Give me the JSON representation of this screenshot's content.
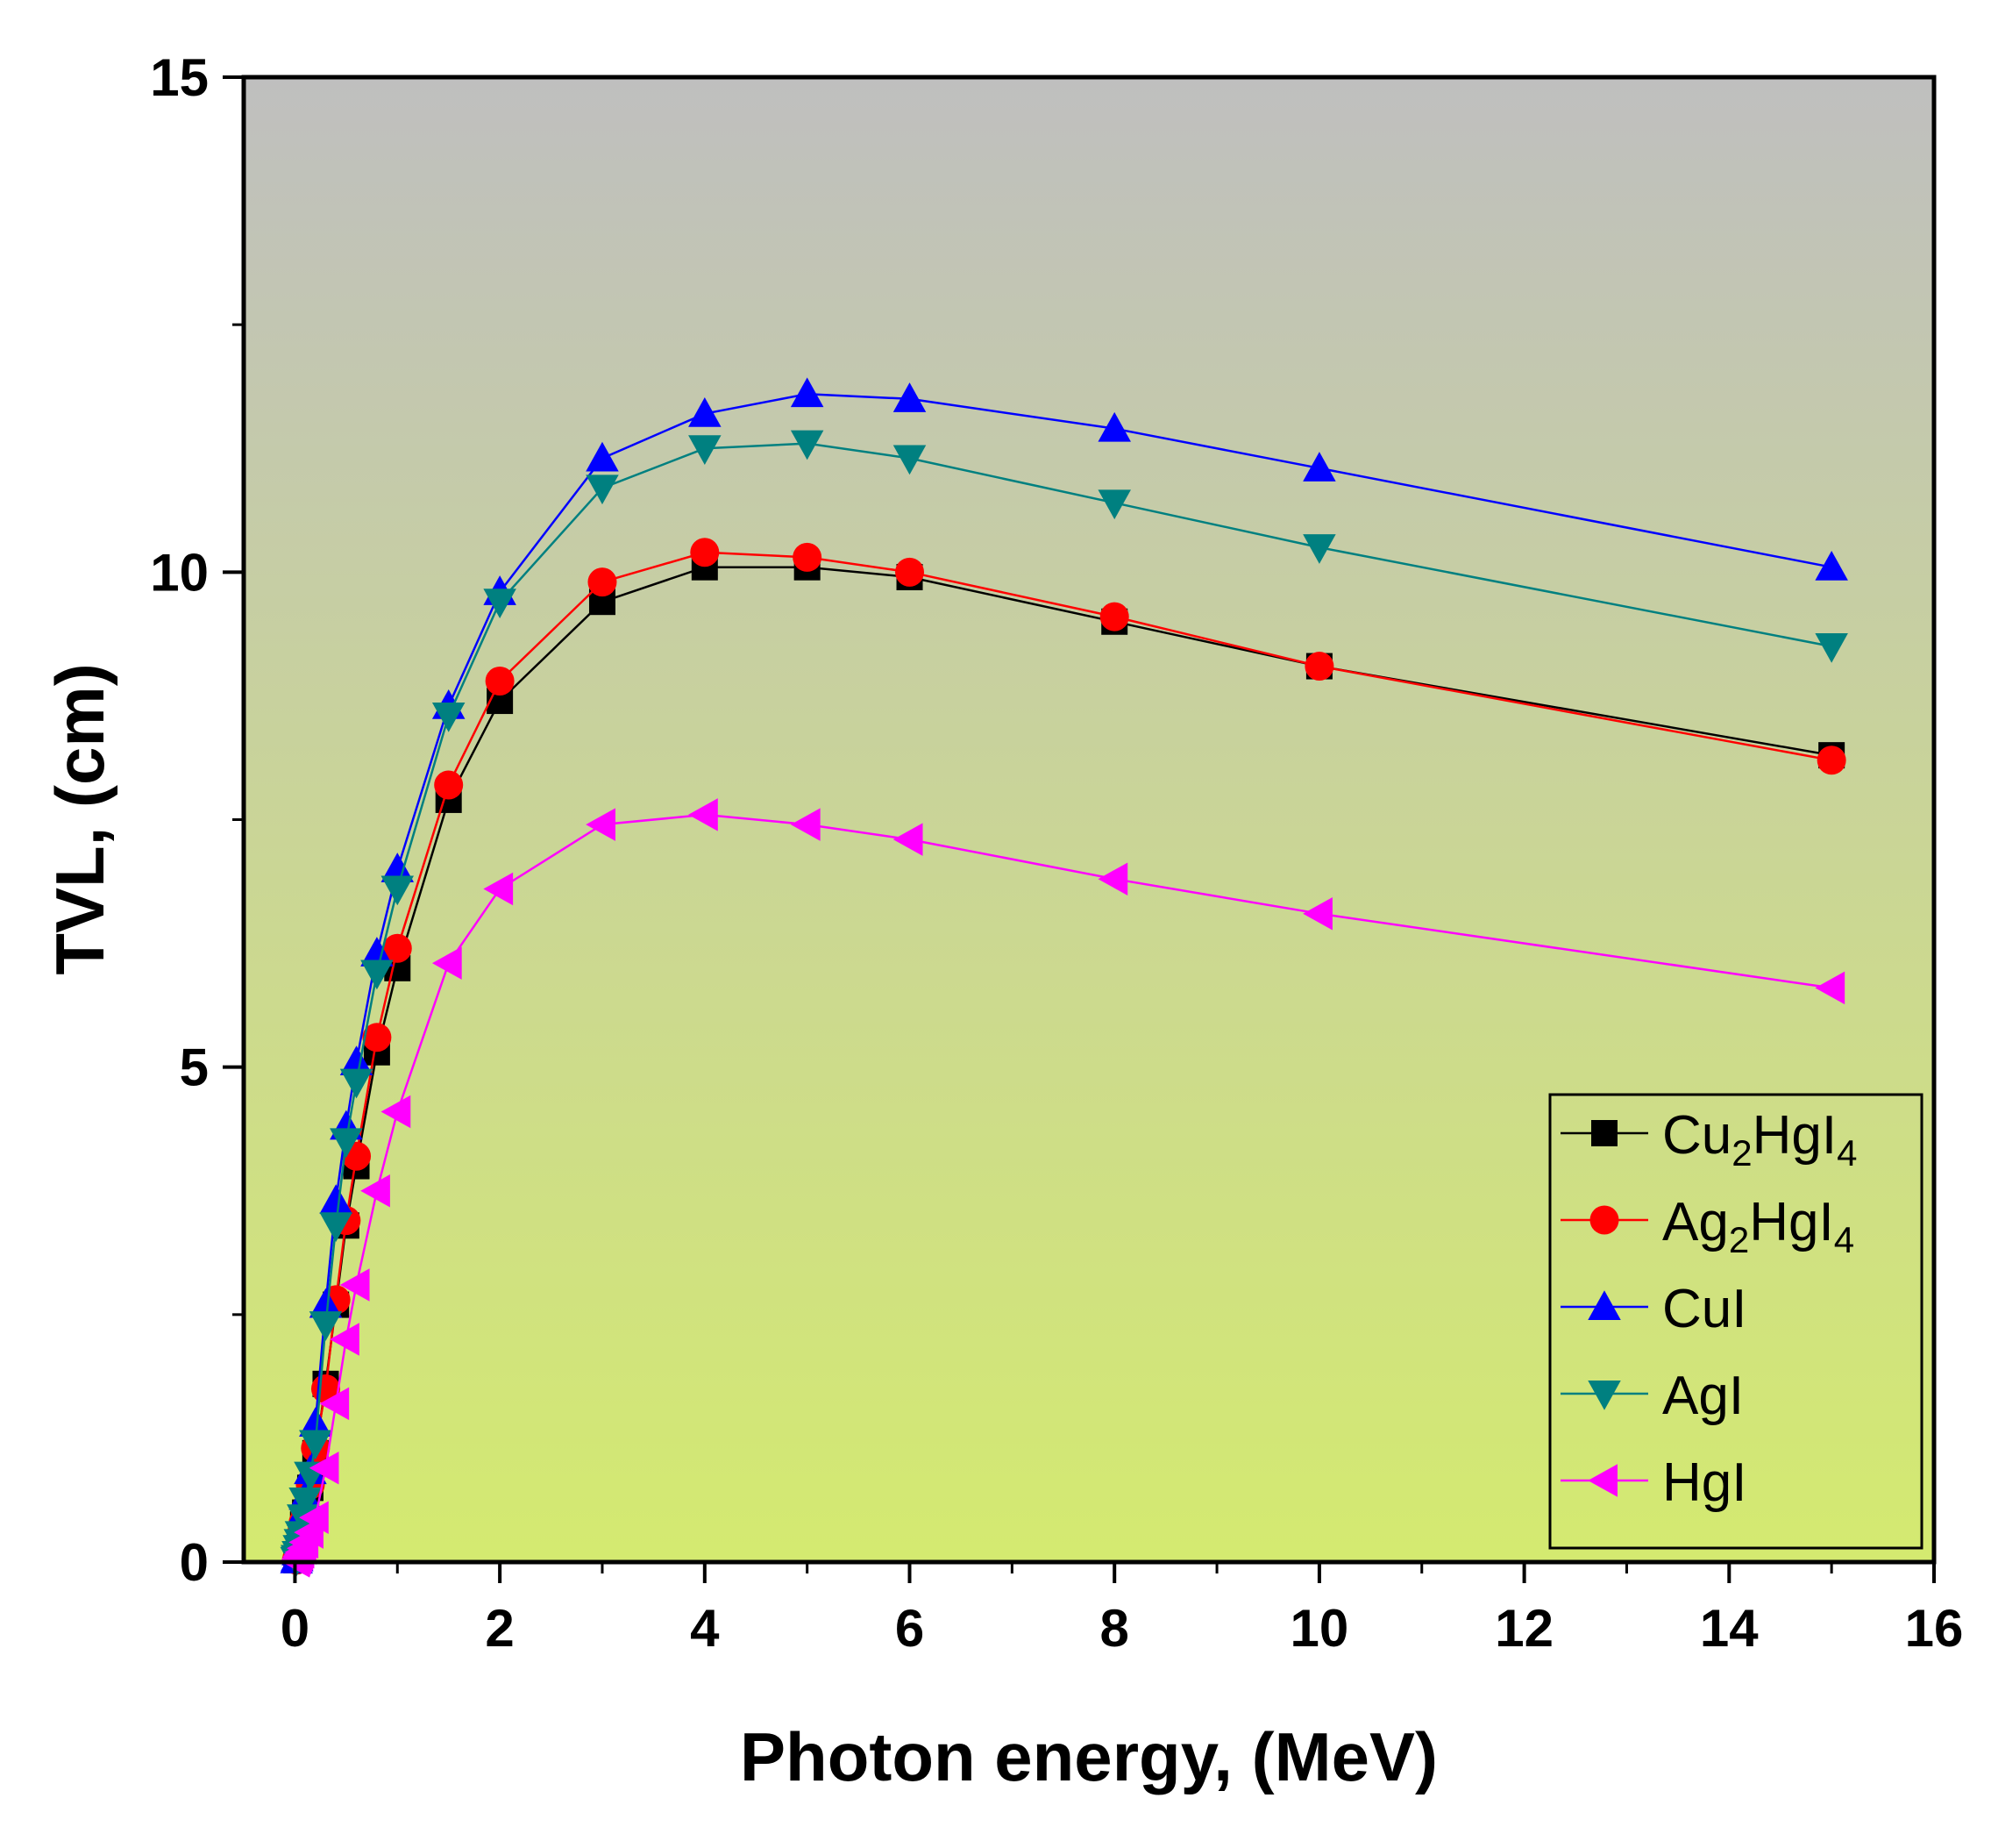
{
  "chart_data": {
    "type": "line",
    "title": "",
    "xlabel": "Photon energy, (MeV)",
    "ylabel": "TVL, (cm)",
    "xlim": [
      -0.5,
      16
    ],
    "ylim": [
      0,
      15
    ],
    "x_ticks": [
      0,
      2,
      4,
      6,
      8,
      10,
      12,
      14,
      16
    ],
    "x_tick_labels": [
      "0",
      "2",
      "4",
      "6",
      "8",
      "10",
      "12",
      "14",
      "16"
    ],
    "y_ticks": [
      0,
      5,
      10,
      15
    ],
    "y_tick_labels": [
      "0",
      "5",
      "10",
      "15"
    ],
    "grid": false,
    "legend_position": "bottom-right",
    "background_gradient": [
      "#bfbfbf",
      "#d4ea70"
    ],
    "series": [
      {
        "name": "Cu2HgI4",
        "legend_main": "Cu",
        "legend_parts": [
          [
            "Cu",
            ""
          ],
          [
            "2",
            "sub"
          ],
          [
            "HgI",
            ""
          ],
          [
            "4",
            "sub"
          ]
        ],
        "color": "#000000",
        "marker": "square",
        "x": [
          0.015,
          0.02,
          0.03,
          0.04,
          0.05,
          0.06,
          0.08,
          0.1,
          0.15,
          0.2,
          0.3,
          0.4,
          0.5,
          0.6,
          0.8,
          1,
          1.5,
          2,
          3,
          4,
          5,
          6,
          8,
          10,
          15
        ],
        "values": [
          0.02,
          0.04,
          0.08,
          0.14,
          0.2,
          0.27,
          0.38,
          0.5,
          0.75,
          1.1,
          1.8,
          2.6,
          3.4,
          4.0,
          5.15,
          6.0,
          7.7,
          8.7,
          9.7,
          10.05,
          10.05,
          9.95,
          9.5,
          9.05,
          8.15
        ]
      },
      {
        "name": "Ag2HgI4",
        "legend_main": "Ag",
        "legend_parts": [
          [
            "Ag",
            ""
          ],
          [
            "2",
            "sub"
          ],
          [
            "HgI",
            ""
          ],
          [
            "4",
            "sub"
          ]
        ],
        "color": "#ff0000",
        "marker": "circle",
        "x": [
          0.015,
          0.02,
          0.03,
          0.04,
          0.05,
          0.06,
          0.08,
          0.1,
          0.15,
          0.2,
          0.3,
          0.4,
          0.5,
          0.6,
          0.8,
          1,
          1.5,
          2,
          3,
          4,
          5,
          6,
          8,
          10,
          15
        ],
        "values": [
          0.02,
          0.04,
          0.08,
          0.14,
          0.2,
          0.28,
          0.4,
          0.52,
          0.78,
          1.15,
          1.75,
          2.65,
          3.45,
          4.1,
          5.3,
          6.2,
          7.85,
          8.9,
          9.9,
          10.2,
          10.15,
          10.0,
          9.55,
          9.05,
          8.1
        ]
      },
      {
        "name": "CuI",
        "legend_main": "CuI",
        "legend_parts": [
          [
            "CuI",
            ""
          ]
        ],
        "color": "#0000ff",
        "marker": "triangle-up",
        "x": [
          0.015,
          0.02,
          0.03,
          0.04,
          0.05,
          0.06,
          0.08,
          0.1,
          0.15,
          0.2,
          0.3,
          0.4,
          0.5,
          0.6,
          0.8,
          1,
          1.5,
          2,
          3,
          4,
          5,
          6,
          8,
          10,
          15
        ],
        "values": [
          0.02,
          0.04,
          0.1,
          0.17,
          0.24,
          0.33,
          0.5,
          0.66,
          0.92,
          1.4,
          2.6,
          3.65,
          4.4,
          5.05,
          6.15,
          7.0,
          8.65,
          9.8,
          11.15,
          11.6,
          11.8,
          11.75,
          11.45,
          11.05,
          10.05
        ]
      },
      {
        "name": "AgI",
        "legend_main": "AgI",
        "legend_parts": [
          [
            "AgI",
            ""
          ]
        ],
        "color": "#008080",
        "marker": "triangle-down",
        "x": [
          0.015,
          0.02,
          0.03,
          0.04,
          0.05,
          0.06,
          0.08,
          0.1,
          0.15,
          0.2,
          0.3,
          0.4,
          0.5,
          0.6,
          0.8,
          1,
          1.5,
          2,
          3,
          4,
          5,
          6,
          8,
          10,
          15
        ],
        "values": [
          0.02,
          0.04,
          0.08,
          0.14,
          0.2,
          0.28,
          0.45,
          0.62,
          0.88,
          1.2,
          2.4,
          3.4,
          4.25,
          4.85,
          5.95,
          6.8,
          8.55,
          9.7,
          10.85,
          11.25,
          11.3,
          11.15,
          10.7,
          10.25,
          9.25
        ]
      },
      {
        "name": "HgI",
        "legend_main": "HgI",
        "legend_parts": [
          [
            "HgI",
            ""
          ]
        ],
        "color": "#ff00ff",
        "marker": "triangle-left",
        "x": [
          0.015,
          0.02,
          0.03,
          0.04,
          0.05,
          0.06,
          0.08,
          0.1,
          0.15,
          0.2,
          0.3,
          0.4,
          0.5,
          0.6,
          0.8,
          1,
          1.5,
          2,
          3,
          4,
          5,
          6,
          8,
          10,
          15
        ],
        "values": [
          0.01,
          0.02,
          0.04,
          0.06,
          0.08,
          0.1,
          0.14,
          0.2,
          0.3,
          0.45,
          0.95,
          1.6,
          2.25,
          2.8,
          3.75,
          4.55,
          6.05,
          6.8,
          7.45,
          7.55,
          7.45,
          7.3,
          6.9,
          6.55,
          5.8
        ]
      }
    ]
  }
}
